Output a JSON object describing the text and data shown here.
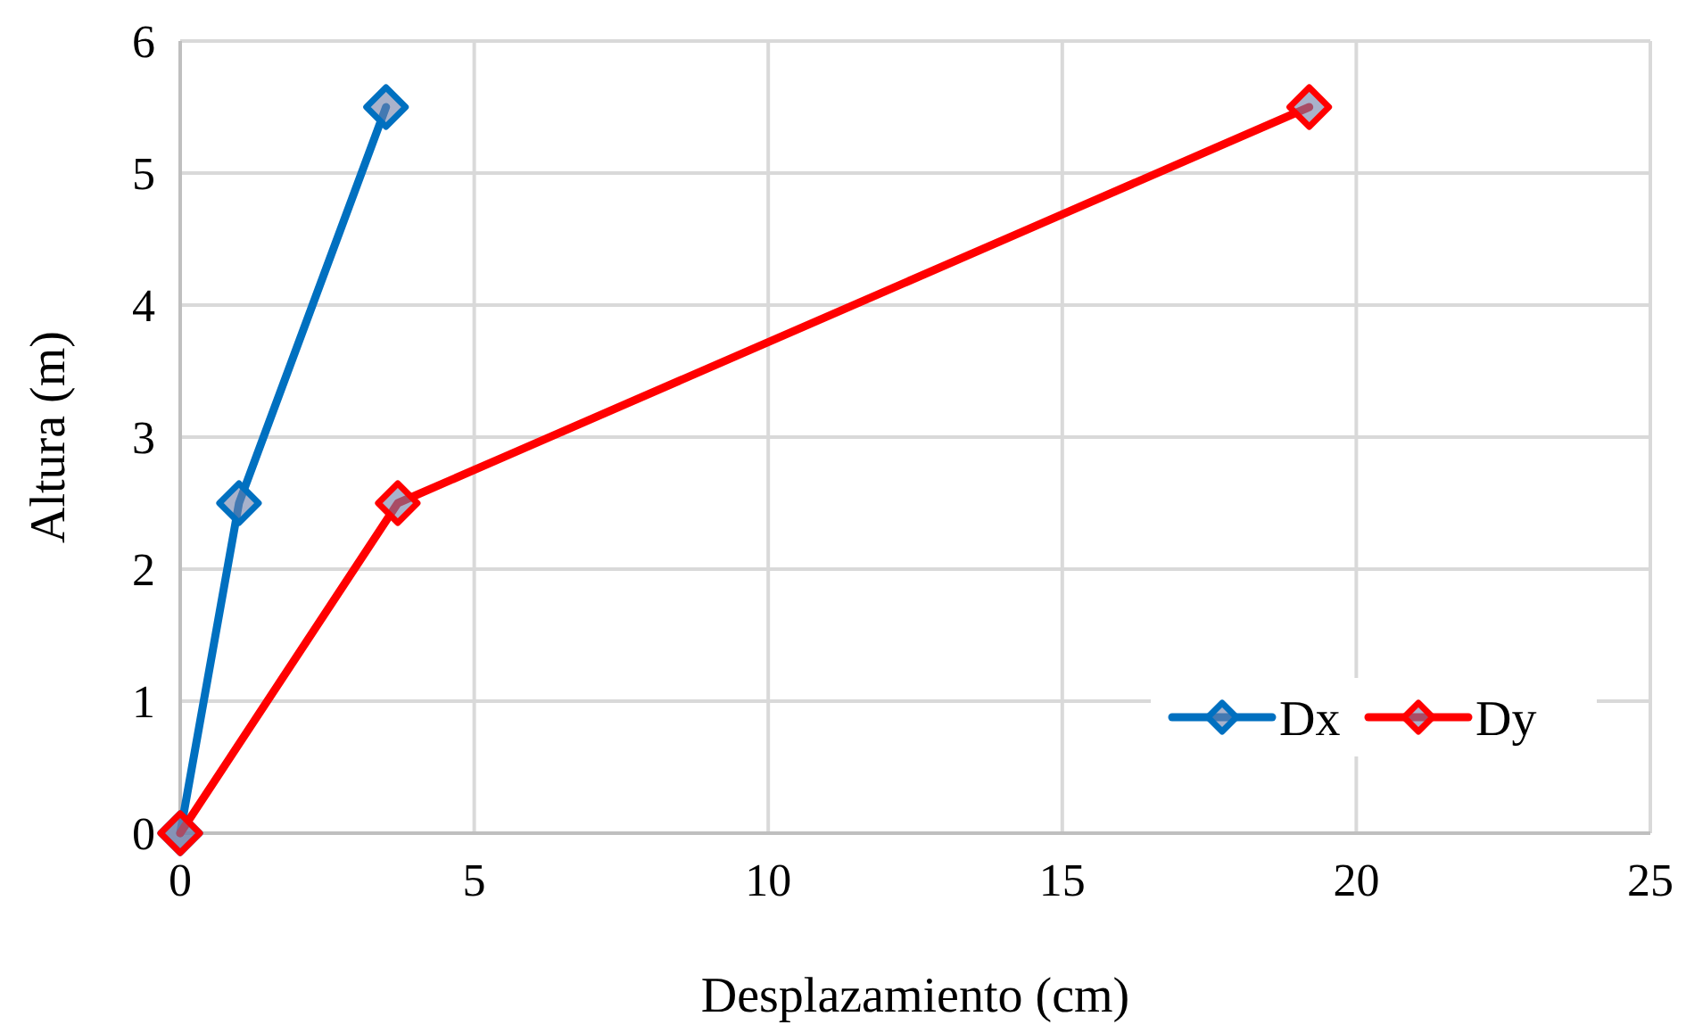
{
  "chart_data": {
    "type": "line",
    "xlabel": "Desplazamiento (cm)",
    "ylabel": "Altura (m)",
    "xlim": [
      0,
      25
    ],
    "xticks": [
      0,
      5,
      10,
      15,
      20,
      25
    ],
    "ylim": [
      0,
      6
    ],
    "yticks": [
      0,
      1,
      2,
      3,
      4,
      5,
      6
    ],
    "grid": true,
    "legend": "bottom right",
    "marker": "diamond",
    "line_style": "solid",
    "series": [
      {
        "name": "Dx",
        "color": "#0070c0",
        "x": [
          0,
          1.0,
          3.5
        ],
        "values": [
          0,
          2.5,
          5.5
        ]
      },
      {
        "name": "Dy",
        "color": "#ff0000",
        "x": [
          0,
          3.7,
          19.2
        ],
        "values": [
          0,
          2.5,
          5.5
        ]
      }
    ]
  }
}
